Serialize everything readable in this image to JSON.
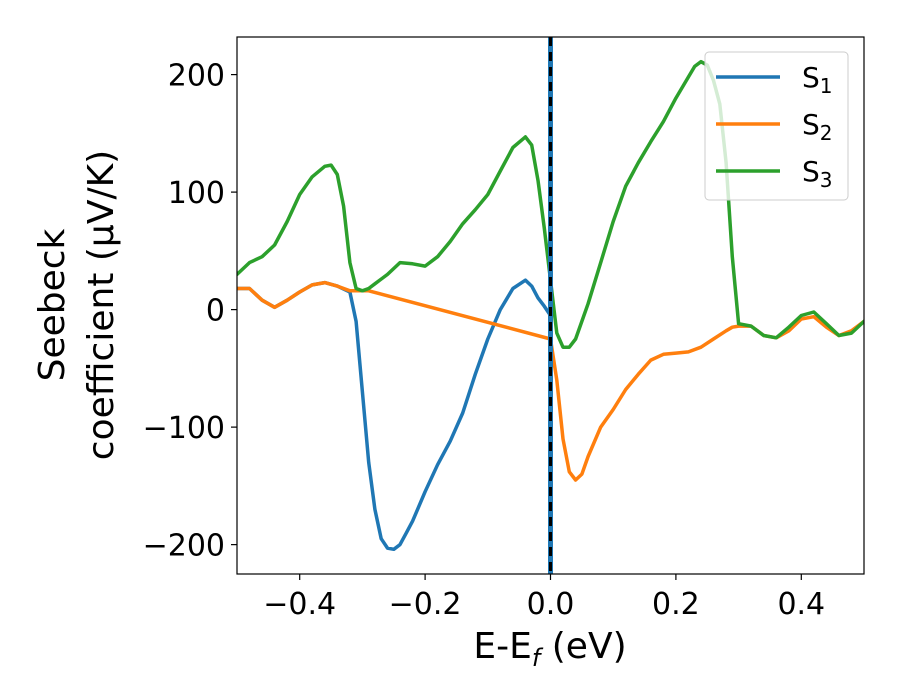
{
  "chart_data": {
    "type": "line",
    "xlabel": "E-E",
    "xlabel_sub": "f",
    "xlabel_unit": " (eV)",
    "ylabel_line1": "Seebeck",
    "ylabel_line2": "coefficient  (μV/K)",
    "xlim": [
      -0.5,
      0.5
    ],
    "ylim": [
      -225,
      232
    ],
    "xticks": [
      -0.4,
      -0.2,
      0.0,
      0.2,
      0.4
    ],
    "xtick_labels": [
      "−0.4",
      "−0.2",
      "0.0",
      "0.2",
      "0.4"
    ],
    "yticks": [
      200,
      100,
      0,
      -100,
      -200
    ],
    "ytick_labels": [
      "200",
      "100",
      "0",
      "−100",
      "−200"
    ],
    "grid": false,
    "legend_position": "top-right",
    "vertical_line": {
      "x": 0.0,
      "colors": [
        "#1f77b4",
        "#000000"
      ],
      "style": "dashed"
    },
    "series": [
      {
        "name": "S",
        "name_sub": "1",
        "color": "#1f77b4",
        "x": [
          -0.5,
          -0.48,
          -0.46,
          -0.44,
          -0.42,
          -0.4,
          -0.38,
          -0.36,
          -0.34,
          -0.32,
          -0.31,
          -0.3,
          -0.29,
          -0.28,
          -0.27,
          -0.26,
          -0.25,
          -0.24,
          -0.23,
          -0.22,
          -0.2,
          -0.18,
          -0.16,
          -0.14,
          -0.12,
          -0.1,
          -0.08,
          -0.06,
          -0.04,
          -0.03,
          -0.02,
          -0.01,
          0.0
        ],
        "y": [
          18,
          18,
          8,
          2,
          8,
          15,
          21,
          23,
          20,
          15,
          -10,
          -70,
          -130,
          -170,
          -195,
          -203,
          -204,
          -200,
          -190,
          -180,
          -155,
          -132,
          -112,
          -88,
          -55,
          -25,
          0,
          18,
          25,
          20,
          10,
          3,
          -5
        ]
      },
      {
        "name": "S",
        "name_sub": "2",
        "color": "#ff7f0e",
        "x": [
          -0.5,
          -0.48,
          -0.46,
          -0.44,
          -0.42,
          -0.4,
          -0.38,
          -0.36,
          -0.34,
          -0.32,
          -0.31,
          -0.3,
          -0.29,
          0.0,
          0.01,
          0.02,
          0.03,
          0.04,
          0.05,
          0.06,
          0.08,
          0.1,
          0.12,
          0.14,
          0.16,
          0.18,
          0.2,
          0.22,
          0.24,
          0.26,
          0.28,
          0.29,
          0.3,
          0.32,
          0.34,
          0.36,
          0.38,
          0.4,
          0.42,
          0.44,
          0.46,
          0.48,
          0.5
        ],
        "y": [
          18,
          18,
          8,
          2,
          8,
          15,
          21,
          23,
          20,
          16,
          16,
          16,
          16,
          -25,
          -60,
          -110,
          -138,
          -145,
          -140,
          -125,
          -100,
          -85,
          -68,
          -55,
          -43,
          -38,
          -37,
          -36,
          -32,
          -25,
          -18,
          -15,
          -14,
          -14,
          -22,
          -24,
          -18,
          -8,
          -6,
          -15,
          -22,
          -18,
          -10
        ]
      },
      {
        "name": "S",
        "name_sub": "3",
        "color": "#2ca02c",
        "x": [
          -0.5,
          -0.48,
          -0.46,
          -0.44,
          -0.42,
          -0.4,
          -0.38,
          -0.36,
          -0.35,
          -0.34,
          -0.33,
          -0.32,
          -0.31,
          -0.3,
          -0.29,
          -0.28,
          -0.26,
          -0.24,
          -0.22,
          -0.2,
          -0.18,
          -0.16,
          -0.14,
          -0.12,
          -0.1,
          -0.08,
          -0.06,
          -0.04,
          -0.03,
          -0.02,
          -0.01,
          0.0,
          0.01,
          0.02,
          0.03,
          0.04,
          0.06,
          0.08,
          0.1,
          0.12,
          0.14,
          0.16,
          0.18,
          0.2,
          0.22,
          0.23,
          0.24,
          0.25,
          0.26,
          0.27,
          0.28,
          0.29,
          0.3,
          0.32,
          0.34,
          0.36,
          0.38,
          0.4,
          0.42,
          0.44,
          0.46,
          0.48,
          0.5
        ],
        "y": [
          30,
          40,
          45,
          55,
          75,
          98,
          113,
          122,
          123,
          115,
          88,
          40,
          18,
          16,
          18,
          22,
          30,
          40,
          39,
          37,
          45,
          58,
          73,
          85,
          98,
          118,
          138,
          147,
          140,
          110,
          70,
          25,
          -20,
          -32,
          -32,
          -25,
          5,
          40,
          75,
          105,
          125,
          143,
          160,
          180,
          198,
          207,
          211,
          208,
          195,
          175,
          125,
          45,
          -12,
          -14,
          -22,
          -24,
          -15,
          -5,
          -2,
          -12,
          -22,
          -20,
          -10
        ]
      }
    ]
  }
}
